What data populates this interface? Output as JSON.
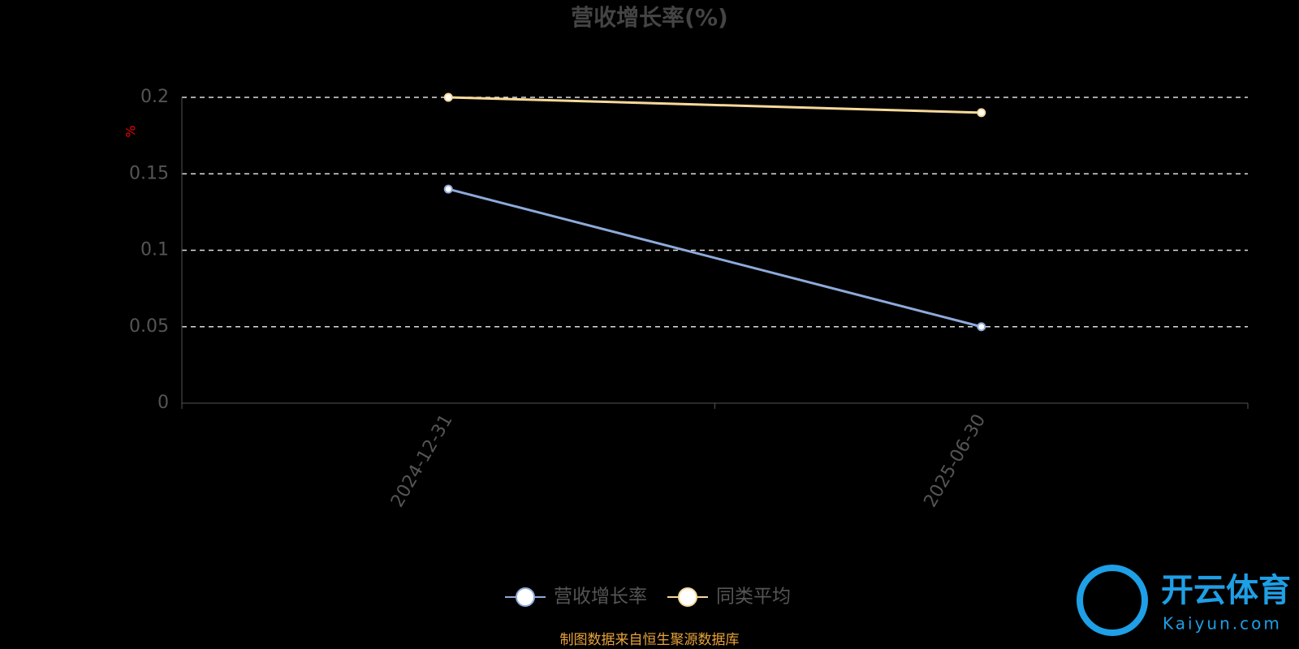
{
  "chart_data": {
    "type": "line",
    "title": "营收增长率(%)",
    "y_label": "%",
    "categories": [
      "2024-12-31",
      "2025-06-30"
    ],
    "series": [
      {
        "name": "营收增长率",
        "color": "#8eaadb",
        "values": [
          0.14,
          0.05
        ]
      },
      {
        "name": "同类平均",
        "color": "#f8d99a",
        "values": [
          0.2,
          0.19
        ]
      }
    ],
    "ylim": [
      0,
      0.2
    ],
    "yticks": [
      0,
      0.05,
      0.1,
      0.15,
      0.2
    ],
    "grid": true,
    "legend": "bottom",
    "source": "制图数据来自恒生聚源数据库"
  },
  "watermark": {
    "brand": "开云体育",
    "site": "Kaiyun.com"
  }
}
